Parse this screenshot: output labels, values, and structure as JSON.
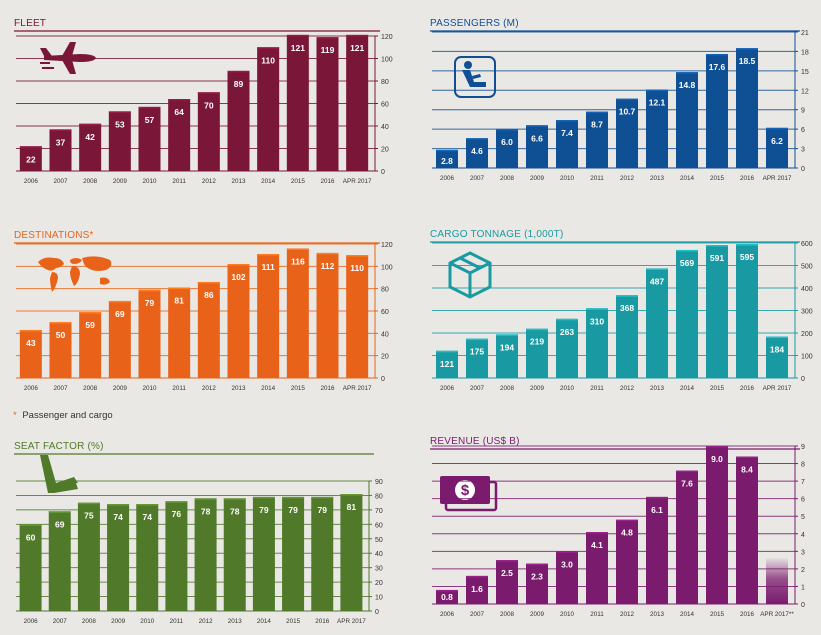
{
  "charts": [
    {
      "id": "fleet",
      "type": "bar",
      "title": "FLEET",
      "color": "#7a1638",
      "line_color": "#7a1638",
      "categories": [
        "2006",
        "2007",
        "2008",
        "2009",
        "2010",
        "2011",
        "2012",
        "2013",
        "2014",
        "2015",
        "2016",
        "APR 2017"
      ],
      "values": [
        22,
        37,
        42,
        53,
        57,
        64,
        70,
        89,
        110,
        121,
        119,
        121
      ],
      "value_labels": [
        "22",
        "37",
        "42",
        "53",
        "57",
        "64",
        "70",
        "89",
        "110",
        "121",
        "119",
        "121"
      ],
      "yticks": [
        "0",
        "20",
        "40",
        "60",
        "80",
        "100",
        "120"
      ],
      "ylim": [
        0,
        120
      ],
      "icon": "airplane-icon"
    },
    {
      "id": "passengers",
      "type": "bar",
      "title": "PASSENGERS (M)",
      "color": "#0f4f94",
      "line_color": "#0f4f94",
      "categories": [
        "2006",
        "2007",
        "2008",
        "2009",
        "2010",
        "2011",
        "2012",
        "2013",
        "2014",
        "2015",
        "2016",
        "APR 2017"
      ],
      "values": [
        2.8,
        4.6,
        6.0,
        6.6,
        7.4,
        8.7,
        10.7,
        12.1,
        14.8,
        17.6,
        18.5,
        6.2
      ],
      "value_labels": [
        "2.8",
        "4.6",
        "6.0",
        "6.6",
        "7.4",
        "8.7",
        "10.7",
        "12.1",
        "14.8",
        "17.6",
        "18.5",
        "6.2"
      ],
      "yticks": [
        "0",
        "3",
        "6",
        "9",
        "12",
        "15",
        "18",
        "21"
      ],
      "ylim": [
        0,
        21
      ],
      "icon": "passenger-seat-icon"
    },
    {
      "id": "destinations",
      "type": "bar",
      "title": "DESTINATIONS*",
      "color": "#e86319",
      "line_color": "#e86319",
      "categories": [
        "2006",
        "2007",
        "2008",
        "2009",
        "2010",
        "2011",
        "2012",
        "2013",
        "2014",
        "2015",
        "2016",
        "APR 2017"
      ],
      "values": [
        43,
        50,
        59,
        69,
        79,
        81,
        86,
        102,
        111,
        116,
        112,
        110
      ],
      "value_labels": [
        "43",
        "50",
        "59",
        "69",
        "79",
        "81",
        "86",
        "102",
        "111",
        "116",
        "112",
        "110"
      ],
      "yticks": [
        "0",
        "20",
        "40",
        "60",
        "80",
        "100",
        "120"
      ],
      "ylim": [
        0,
        120
      ],
      "icon": "world-map-icon",
      "footnote": "Passenger and cargo",
      "footnote_mark": "*"
    },
    {
      "id": "cargo",
      "type": "bar",
      "title": "CARGO TONNAGE (1,000T)",
      "color": "#199aa3",
      "line_color": "#199aa3",
      "categories": [
        "2006",
        "2007",
        "2008",
        "2009",
        "2010",
        "2011",
        "2012",
        "2013",
        "2014",
        "2015",
        "2016",
        "APR 2017"
      ],
      "values": [
        121,
        175,
        194,
        219,
        263,
        310,
        368,
        487,
        569,
        591,
        595,
        184
      ],
      "value_labels": [
        "121",
        "175",
        "194",
        "219",
        "263",
        "310",
        "368",
        "487",
        "569",
        "591",
        "595",
        "184"
      ],
      "yticks": [
        "0",
        "100",
        "200",
        "300",
        "400",
        "500",
        "600"
      ],
      "ylim": [
        0,
        600
      ],
      "icon": "cargo-box-icon"
    },
    {
      "id": "seat",
      "type": "bar",
      "title": "SEAT FACTOR (%)",
      "color": "#507a2a",
      "line_color": "#507a2a",
      "categories": [
        "2006",
        "2007",
        "2008",
        "2009",
        "2010",
        "2011",
        "2012",
        "2013",
        "2014",
        "2015",
        "2016",
        "APR 2017"
      ],
      "values": [
        60,
        69,
        75,
        74,
        74,
        76,
        78,
        78,
        79,
        79,
        79,
        81
      ],
      "value_labels": [
        "60",
        "69",
        "75",
        "74",
        "74",
        "76",
        "78",
        "78",
        "79",
        "79",
        "79",
        "81"
      ],
      "yticks": [
        "0",
        "10",
        "20",
        "30",
        "40",
        "50",
        "60",
        "70",
        "80",
        "90"
      ],
      "ylim": [
        0,
        90
      ],
      "icon": "seat-icon"
    },
    {
      "id": "revenue",
      "type": "bar",
      "title": "REVENUE (US$ B)",
      "color": "#7a1b6e",
      "line_color": "#7a1b6e",
      "categories": [
        "2006",
        "2007",
        "2008",
        "2009",
        "2010",
        "2011",
        "2012",
        "2013",
        "2014",
        "2015",
        "2016",
        "APR 2017**"
      ],
      "values": [
        0.8,
        1.6,
        2.5,
        2.3,
        3.0,
        4.1,
        4.8,
        6.1,
        7.6,
        9.0,
        8.4,
        2.6
      ],
      "value_labels": [
        "0.8",
        "1.6",
        "2.5",
        "2.3",
        "3.0",
        "4.1",
        "4.8",
        "6.1",
        "7.6",
        "9.0",
        "8.4",
        ""
      ],
      "yticks": [
        "0",
        "1",
        "2",
        "3",
        "4",
        "5",
        "6",
        "7",
        "8",
        "9"
      ],
      "ylim": [
        0,
        9
      ],
      "icon": "money-icon"
    }
  ]
}
